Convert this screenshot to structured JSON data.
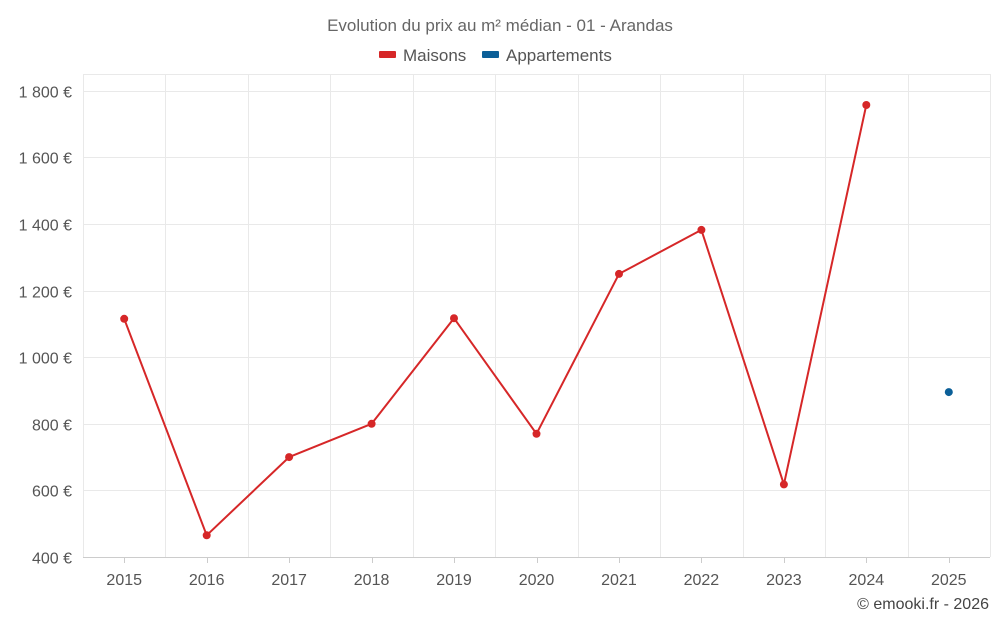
{
  "chart_data": {
    "type": "line",
    "title": "Evolution du prix au m² médian - 01 - Arandas",
    "categories": [
      "2015",
      "2016",
      "2017",
      "2018",
      "2019",
      "2020",
      "2021",
      "2022",
      "2023",
      "2024",
      "2025"
    ],
    "series": [
      {
        "name": "Maisons",
        "color": "#d62728",
        "values": [
          1115,
          465,
          700,
          800,
          1117,
          770,
          1250,
          1382,
          618,
          1757,
          null
        ]
      },
      {
        "name": "Appartements",
        "color": "#0b5f98",
        "values": [
          null,
          null,
          null,
          null,
          null,
          null,
          null,
          null,
          null,
          null,
          895
        ]
      }
    ],
    "y_ticks": [
      "400 €",
      "600 €",
      "800 €",
      "1 000 €",
      "1 200 €",
      "1 400 €",
      "1 600 €",
      "1 800 €"
    ],
    "ylim": [
      400,
      1850
    ],
    "xlabel": "",
    "ylabel": "",
    "legend_position": "top-center",
    "grid": true
  },
  "credit": "© emooki.fr - 2026"
}
